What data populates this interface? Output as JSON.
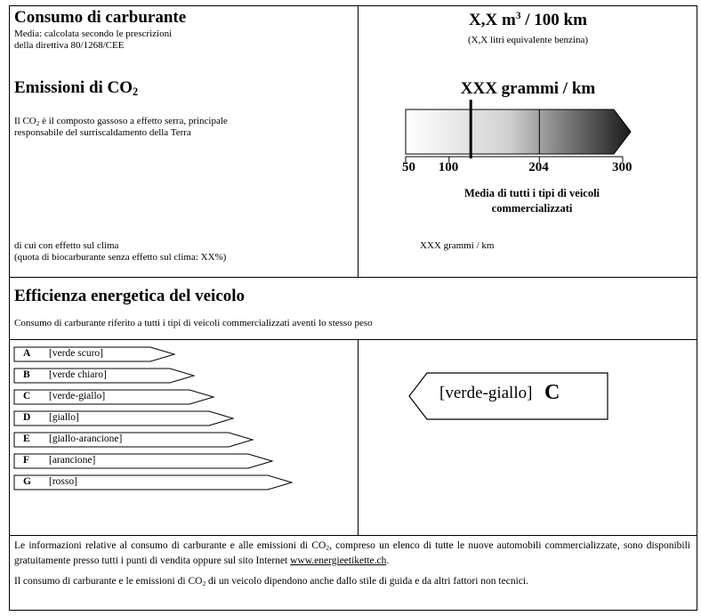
{
  "fuel": {
    "title": "Consumo di carburante",
    "note_line1": "Media: calcolata secondo le prescrizioni",
    "note_line2": "della direttiva 80/1268/CEE",
    "value_main": "X,X m",
    "value_sup": "3",
    "value_rest": " / 100 km",
    "value_sub": "(X,X litri equivalente benzina)"
  },
  "co2": {
    "title_pre": "Emissioni di CO",
    "title_sub": "2",
    "desc_a": "Il CO",
    "desc_sub": "2",
    "desc_b": " è il composto gassoso a effetto serra, principale",
    "desc_line2": "responsabile del surriscaldamento della Terra",
    "value": "XXX grammi / km",
    "climate_line1": "di cui con effetto sul clima",
    "climate_line2": "(quota di biocarburante senza effetto sul clima: XX%)",
    "climate_value": "XXX grammi / km"
  },
  "scale": {
    "ticks": [
      "50",
      "100",
      "204",
      "300"
    ],
    "min": 50,
    "max": 300,
    "marker_value": 125,
    "divider_value": 204,
    "avg_line1": "Media di tutti i tipi di  veicoli",
    "avg_line2": "commercializzati"
  },
  "efficiency": {
    "title": "Efficienza energetica del veicolo",
    "subtitle": "Consumo di carburante riferito a tutti i tipi di veicoli commercializzati aventi lo stesso peso",
    "classes": [
      {
        "letter": "A",
        "name": "[verde scuro]"
      },
      {
        "letter": "B",
        "name": "[verde chiaro]"
      },
      {
        "letter": "C",
        "name": "[verde-giallo]"
      },
      {
        "letter": "D",
        "name": "[giallo]"
      },
      {
        "letter": "E",
        "name": "[giallo-arancione]"
      },
      {
        "letter": "F",
        "name": "[arancione]"
      },
      {
        "letter": "G",
        "name": "[rosso]"
      }
    ],
    "selected_name": "[verde-giallo]",
    "selected_letter": "C"
  },
  "footer": {
    "p1_a": "Le informazioni relative al consumo di carburante e alle emissioni di CO",
    "p1_sub": "2",
    "p1_b": ", compreso un elenco di tutte le nuove automobili commercializzate, sono disponibili gratuitamente presso tutti i punti di vendita oppure sul sito Internet ",
    "p1_link": "www.energieetikette.ch",
    "p1_end": ".",
    "p2_a": "Il consumo di carburante e le emissioni di CO",
    "p2_sub": "2",
    "p2_b": " di un veicolo dipendono anche dallo stile di guida e da altri fattori non tecnici."
  }
}
